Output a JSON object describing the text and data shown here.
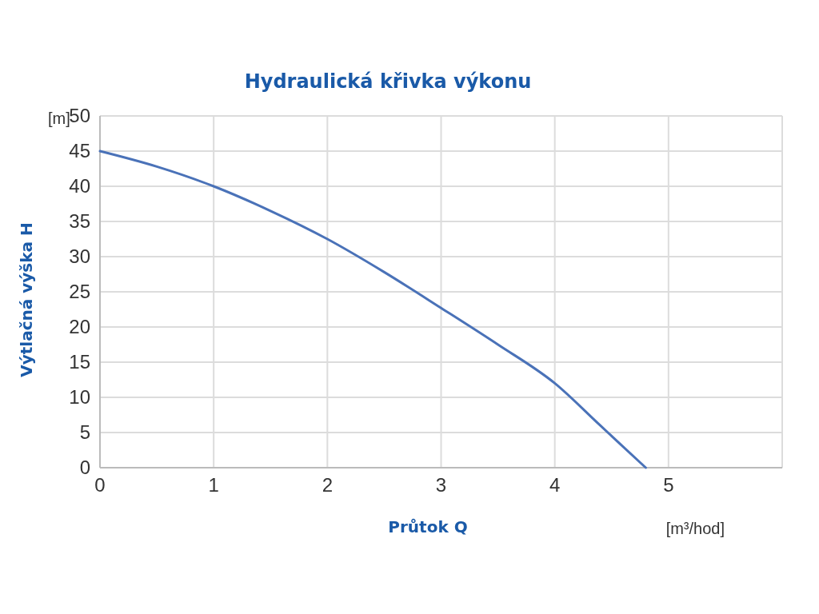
{
  "chart_data": {
    "type": "line",
    "title": "Hydraulická křivka výkonu",
    "xlabel": "Průtok Q",
    "ylabel": "Výtlačná výška H",
    "annotations": [
      "[m]",
      "[m³/hod]"
    ],
    "series": [
      {
        "color": "#4a72b8",
        "x": [
          0,
          0.5,
          1,
          1.5,
          2,
          2.5,
          3,
          3.5,
          4,
          4.4,
          4.8
        ],
        "values": [
          45,
          42.8,
          40,
          36.5,
          32.5,
          27.8,
          22.7,
          17.5,
          12,
          6,
          0
        ]
      }
    ],
    "xlim": [
      0,
      6
    ],
    "xticks": [
      0,
      1,
      2,
      3,
      4,
      5,
      {
        "value": 6,
        "label": null
      }
    ],
    "ylim": [
      0,
      50
    ],
    "yticks": [
      0,
      5,
      10,
      15,
      20,
      25,
      30,
      35,
      40,
      45,
      50
    ],
    "grid": true,
    "marker": "none",
    "line_style": "solid"
  }
}
